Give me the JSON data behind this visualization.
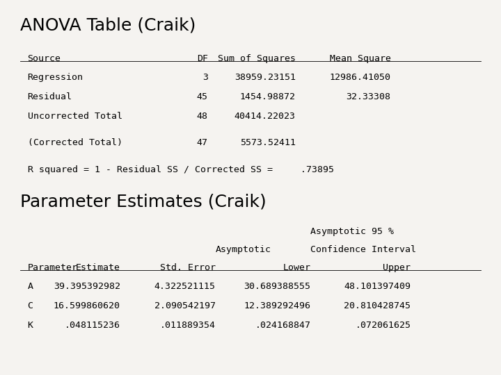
{
  "title1": "ANOVA Table (Craik)",
  "title2": "Parameter Estimates (Craik)",
  "bg_color": "#f5f3f0",
  "anova_header": [
    "Source",
    "DF",
    "Sum of Squares",
    "Mean Square"
  ],
  "anova_rows": [
    [
      "Regression",
      "3",
      "38959.23151",
      "12986.41050"
    ],
    [
      "Residual",
      "45",
      "1454.98872",
      "32.33308"
    ],
    [
      "Uncorrected Total",
      "48",
      "40414.22023",
      ""
    ]
  ],
  "corrected_row": [
    "(Corrected Total)",
    "47",
    "5573.52411",
    ""
  ],
  "r_squared_line": "R squared = 1 - Residual SS / Corrected SS =     .73895",
  "param_rows": [
    [
      "A",
      "39.395392982",
      "4.322521115",
      "30.689388555",
      "48.101397409"
    ],
    [
      "C",
      "16.599860620",
      "2.090542197",
      "12.389292496",
      "20.810428745"
    ],
    [
      "K",
      ".048115236",
      ".011889354",
      ".024168847",
      ".072061625"
    ]
  ],
  "font_size_title": 18,
  "font_size_body": 9.5
}
